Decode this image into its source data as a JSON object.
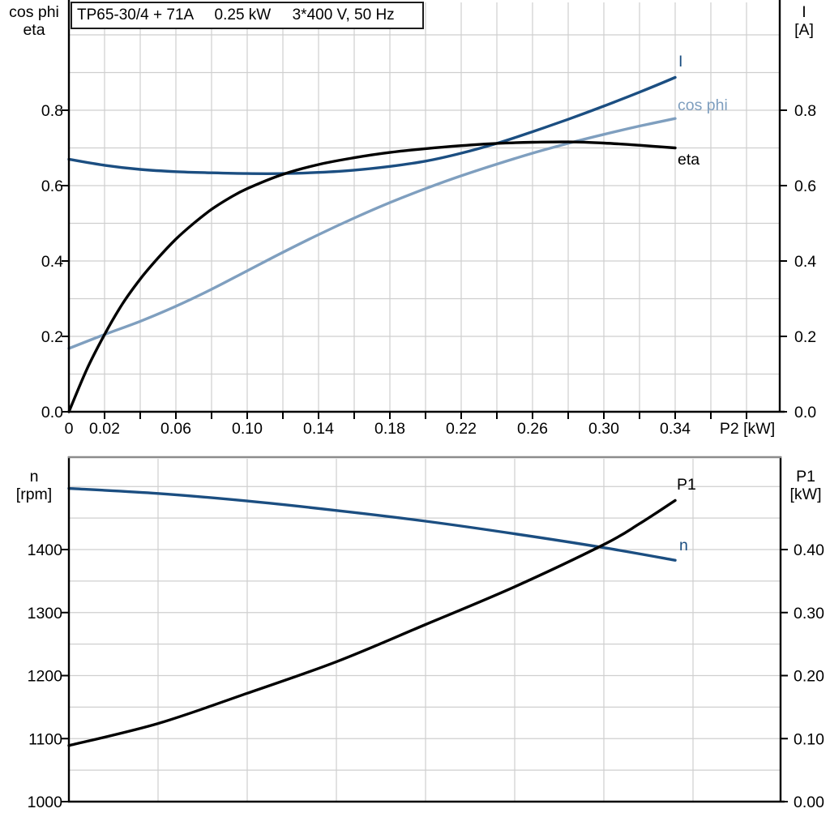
{
  "chart_data": [
    {
      "type": "line",
      "title": "TP65-30/4 + 71A     0.25 kW     3*400 V, 50 Hz",
      "xlabel": "P2 [kW]",
      "xlim": [
        0,
        0.398
      ],
      "x_grid_step": 0.02,
      "x_tick_values": [
        0,
        0.02,
        0.06,
        0.1,
        0.14,
        0.18,
        0.22,
        0.26,
        0.3,
        0.34
      ],
      "x_tick_labels": [
        "0",
        "0.02",
        "0.06",
        "0.10",
        "0.14",
        "0.18",
        "0.22",
        "0.26",
        "0.30",
        "0.34"
      ],
      "left_axis": {
        "label_line1": "cos phi",
        "label_line2": "eta",
        "lim": [
          0,
          1.086
        ],
        "grid_step": 0.1,
        "tick_values": [
          0,
          0.2,
          0.4,
          0.6,
          0.8
        ],
        "tick_labels": [
          "0.0",
          "0.2",
          "0.4",
          "0.6",
          "0.8"
        ]
      },
      "right_axis": {
        "label_line1": "I",
        "label_line2": "[A]",
        "tick_values": [
          0,
          0.2,
          0.4,
          0.6,
          0.8
        ],
        "tick_labels": [
          "0.0",
          "0.2",
          "0.4",
          "0.6",
          "0.8"
        ]
      },
      "grid": true,
      "legend_position": "inline-right",
      "series": [
        {
          "name": "I",
          "color": "#1b4e81",
          "x": [
            0,
            0.02,
            0.04,
            0.06,
            0.08,
            0.1,
            0.12,
            0.14,
            0.16,
            0.18,
            0.2,
            0.22,
            0.24,
            0.26,
            0.28,
            0.3,
            0.32,
            0.34
          ],
          "y": [
            0.67,
            0.654,
            0.643,
            0.637,
            0.634,
            0.632,
            0.632,
            0.635,
            0.641,
            0.651,
            0.665,
            0.686,
            0.712,
            0.743,
            0.776,
            0.811,
            0.848,
            0.887
          ]
        },
        {
          "name": "cos phi",
          "color": "#7f9fbf",
          "x": [
            0,
            0.02,
            0.04,
            0.06,
            0.08,
            0.1,
            0.12,
            0.14,
            0.16,
            0.18,
            0.2,
            0.22,
            0.24,
            0.26,
            0.28,
            0.3,
            0.32,
            0.34
          ],
          "y": [
            0.168,
            0.205,
            0.24,
            0.28,
            0.325,
            0.374,
            0.423,
            0.47,
            0.514,
            0.555,
            0.592,
            0.626,
            0.657,
            0.686,
            0.712,
            0.736,
            0.758,
            0.778
          ]
        },
        {
          "name": "eta",
          "color": "#000000",
          "x": [
            0,
            0.01,
            0.02,
            0.03,
            0.04,
            0.05,
            0.06,
            0.07,
            0.08,
            0.09,
            0.1,
            0.12,
            0.14,
            0.16,
            0.18,
            0.2,
            0.22,
            0.24,
            0.26,
            0.28,
            0.3,
            0.32,
            0.34
          ],
          "y": [
            0,
            0.112,
            0.205,
            0.286,
            0.352,
            0.408,
            0.458,
            0.5,
            0.537,
            0.567,
            0.592,
            0.63,
            0.656,
            0.674,
            0.688,
            0.698,
            0.706,
            0.712,
            0.715,
            0.716,
            0.713,
            0.707,
            0.7
          ]
        }
      ]
    },
    {
      "type": "line",
      "xlim": [
        0,
        0.399
      ],
      "x_grid_step": 0.05,
      "left_axis": {
        "label_line1": "n",
        "label_line2": "[rpm]",
        "lim": [
          1000,
          1545
        ],
        "grid_step": 50,
        "tick_values": [
          1000,
          1100,
          1200,
          1300,
          1400
        ],
        "tick_labels": [
          "1000",
          "1100",
          "1200",
          "1300",
          "1400"
        ]
      },
      "right_axis": {
        "label_line1": "P1",
        "label_line2": "[kW]",
        "lim": [
          0,
          0.545
        ],
        "tick_values": [
          0,
          0.1,
          0.2,
          0.3,
          0.4
        ],
        "tick_labels": [
          "0.00",
          "0.10",
          "0.20",
          "0.30",
          "0.40"
        ]
      },
      "grid": true,
      "series": [
        {
          "name": "n",
          "color": "#1b4e81",
          "axis": "left",
          "x": [
            0,
            0.05,
            0.1,
            0.15,
            0.2,
            0.25,
            0.3,
            0.34
          ],
          "y": [
            1497,
            1489,
            1477,
            1462,
            1445,
            1425,
            1403,
            1383
          ]
        },
        {
          "name": "P1",
          "color": "#000000",
          "axis": "right",
          "x": [
            0,
            0.05,
            0.1,
            0.15,
            0.2,
            0.25,
            0.3,
            0.32,
            0.34
          ],
          "y": [
            0.089,
            0.124,
            0.172,
            0.222,
            0.281,
            0.341,
            0.408,
            0.441,
            0.478
          ]
        }
      ]
    }
  ],
  "colors": {
    "dark_blue": "#1b4e81",
    "light_blue": "#7f9fbf",
    "black": "#000000",
    "grid": "#cfcfcf",
    "frame_gray": "#8c8c8c"
  }
}
